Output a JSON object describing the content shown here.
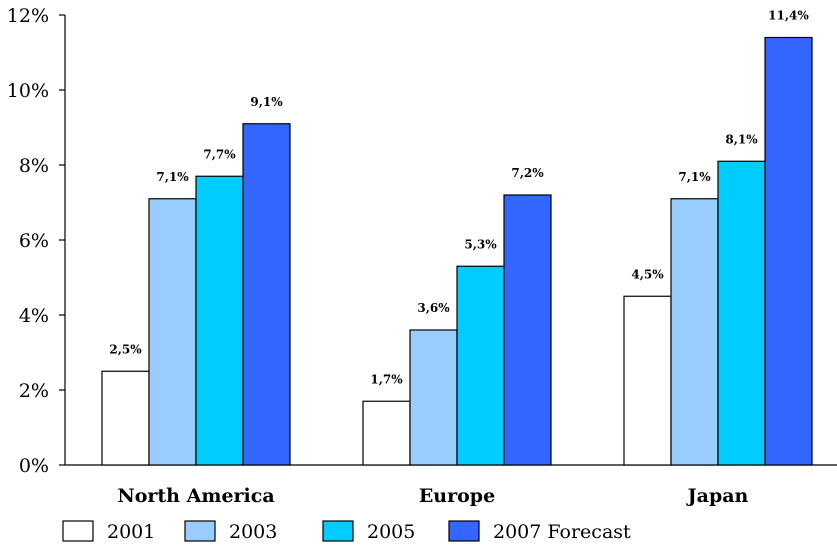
{
  "chart_data": {
    "type": "bar",
    "categories": [
      "North America",
      "Europe",
      "Japan"
    ],
    "series": [
      {
        "name": "2001",
        "color": "#ffffff",
        "values": [
          2.5,
          1.7,
          4.5
        ],
        "labels": [
          "2,5%",
          "1,7%",
          "4,5%"
        ]
      },
      {
        "name": "2003",
        "color": "#99ccff",
        "values": [
          7.1,
          3.6,
          7.1
        ],
        "labels": [
          "7,1%",
          "3,6%",
          "7,1%"
        ]
      },
      {
        "name": "2005",
        "color": "#00ccff",
        "values": [
          7.7,
          5.3,
          8.1
        ],
        "labels": [
          "7,7%",
          "5,3%",
          "8,1%"
        ]
      },
      {
        "name": "2007 Forecast",
        "color": "#3366ff",
        "values": [
          9.1,
          7.2,
          11.4
        ],
        "labels": [
          "9,1%",
          "7,2%",
          "11,4%"
        ]
      }
    ],
    "yticks": [
      "0%",
      "2%",
      "4%",
      "6%",
      "8%",
      "10%",
      "12%"
    ],
    "ylim": [
      0,
      12
    ],
    "legend_position": "bottom",
    "grid": false,
    "title": "",
    "xlabel": "",
    "ylabel": ""
  }
}
